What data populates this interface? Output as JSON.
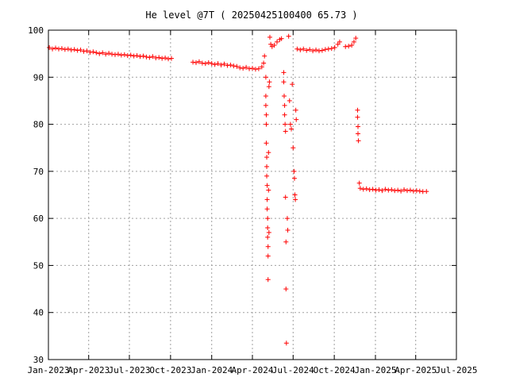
{
  "chart_data": {
    "type": "scatter",
    "title": "He level @7T ( 20250425100400 65.73 )",
    "xlabel": "",
    "ylabel": "",
    "ylim": [
      30,
      100
    ],
    "xlim": [
      "2023-01-01",
      "2025-07-01"
    ],
    "yticks": [
      30,
      40,
      50,
      60,
      70,
      80,
      90,
      100
    ],
    "xticks": [
      {
        "date": "2023-01-01",
        "label": "Jan-2023"
      },
      {
        "date": "2023-04-01",
        "label": "Apr-2023"
      },
      {
        "date": "2023-07-01",
        "label": "Jul-2023"
      },
      {
        "date": "2023-10-01",
        "label": "Oct-2023"
      },
      {
        "date": "2024-01-01",
        "label": "Jan-2024"
      },
      {
        "date": "2024-04-01",
        "label": "Apr-2024"
      },
      {
        "date": "2024-07-01",
        "label": "Jul-2024"
      },
      {
        "date": "2024-10-01",
        "label": "Oct-2024"
      },
      {
        "date": "2025-01-01",
        "label": "Jan-2025"
      },
      {
        "date": "2025-04-01",
        "label": "Apr-2025"
      },
      {
        "date": "2025-07-01",
        "label": "Jul-2025"
      }
    ],
    "grid": true,
    "marker": "plus",
    "marker_color": "#ff0000",
    "series": [
      {
        "points": [
          [
            "2023-01-03",
            96.3
          ],
          [
            "2023-01-10",
            96.0
          ],
          [
            "2023-01-17",
            96.2
          ],
          [
            "2023-01-24",
            96.0
          ],
          [
            "2023-01-31",
            96.1
          ],
          [
            "2023-02-07",
            95.9
          ],
          [
            "2023-02-14",
            96.0
          ],
          [
            "2023-02-21",
            95.8
          ],
          [
            "2023-02-28",
            95.9
          ],
          [
            "2023-03-07",
            95.7
          ],
          [
            "2023-03-14",
            95.8
          ],
          [
            "2023-03-21",
            95.5
          ],
          [
            "2023-03-28",
            95.6
          ],
          [
            "2023-04-04",
            95.3
          ],
          [
            "2023-04-11",
            95.4
          ],
          [
            "2023-04-18",
            95.2
          ],
          [
            "2023-04-25",
            95.0
          ],
          [
            "2023-05-02",
            95.2
          ],
          [
            "2023-05-09",
            94.9
          ],
          [
            "2023-05-16",
            95.1
          ],
          [
            "2023-05-23",
            94.9
          ],
          [
            "2023-05-30",
            94.8
          ],
          [
            "2023-06-06",
            94.9
          ],
          [
            "2023-06-13",
            94.7
          ],
          [
            "2023-06-20",
            94.8
          ],
          [
            "2023-06-27",
            94.6
          ],
          [
            "2023-07-04",
            94.7
          ],
          [
            "2023-07-11",
            94.5
          ],
          [
            "2023-07-18",
            94.6
          ],
          [
            "2023-07-25",
            94.4
          ],
          [
            "2023-08-01",
            94.5
          ],
          [
            "2023-08-08",
            94.3
          ],
          [
            "2023-08-15",
            94.2
          ],
          [
            "2023-08-22",
            94.4
          ],
          [
            "2023-08-29",
            94.1
          ],
          [
            "2023-09-05",
            94.2
          ],
          [
            "2023-09-12",
            94.0
          ],
          [
            "2023-09-19",
            94.1
          ],
          [
            "2023-09-26",
            93.9
          ],
          [
            "2023-10-03",
            94.0
          ],
          [
            "2023-11-20",
            93.2
          ],
          [
            "2023-11-27",
            93.1
          ],
          [
            "2023-12-04",
            93.3
          ],
          [
            "2023-12-11",
            93.0
          ],
          [
            "2023-12-18",
            92.9
          ],
          [
            "2023-12-25",
            93.1
          ],
          [
            "2024-01-01",
            92.9
          ],
          [
            "2024-01-08",
            92.7
          ],
          [
            "2024-01-15",
            92.9
          ],
          [
            "2024-01-22",
            92.6
          ],
          [
            "2024-01-29",
            92.8
          ],
          [
            "2024-02-05",
            92.5
          ],
          [
            "2024-02-12",
            92.6
          ],
          [
            "2024-02-19",
            92.4
          ],
          [
            "2024-02-26",
            92.3
          ],
          [
            "2024-03-04",
            92.0
          ],
          [
            "2024-03-11",
            91.9
          ],
          [
            "2024-03-18",
            92.1
          ],
          [
            "2024-03-25",
            91.8
          ],
          [
            "2024-04-01",
            91.9
          ],
          [
            "2024-04-08",
            91.7
          ],
          [
            "2024-04-15",
            91.8
          ],
          [
            "2024-04-22",
            92.2
          ],
          [
            "2024-04-26",
            93.0
          ],
          [
            "2024-04-28",
            94.5
          ],
          [
            "2024-05-01",
            90.0
          ],
          [
            "2024-05-01",
            86.0
          ],
          [
            "2024-05-01",
            84.0
          ],
          [
            "2024-05-02",
            82.0
          ],
          [
            "2024-05-02",
            80.0
          ],
          [
            "2024-05-02",
            76.0
          ],
          [
            "2024-05-03",
            73.0
          ],
          [
            "2024-05-03",
            71.0
          ],
          [
            "2024-05-03",
            69.0
          ],
          [
            "2024-05-04",
            67.0
          ],
          [
            "2024-05-04",
            64.0
          ],
          [
            "2024-05-04",
            62.0
          ],
          [
            "2024-05-05",
            60.0
          ],
          [
            "2024-05-05",
            58.0
          ],
          [
            "2024-05-05",
            56.0
          ],
          [
            "2024-05-06",
            54.0
          ],
          [
            "2024-05-06",
            52.0
          ],
          [
            "2024-05-06",
            47.0
          ],
          [
            "2024-05-07",
            74.0
          ],
          [
            "2024-05-07",
            66.0
          ],
          [
            "2024-05-08",
            57.0
          ],
          [
            "2024-05-08",
            88.0
          ],
          [
            "2024-05-09",
            89.0
          ],
          [
            "2024-05-10",
            98.5
          ],
          [
            "2024-05-12",
            97.0
          ],
          [
            "2024-05-15",
            96.5
          ],
          [
            "2024-05-20",
            96.8
          ],
          [
            "2024-05-26",
            97.5
          ],
          [
            "2024-06-01",
            98.0
          ],
          [
            "2024-06-05",
            98.2
          ],
          [
            "2024-06-10",
            91.0
          ],
          [
            "2024-06-10",
            89.0
          ],
          [
            "2024-06-11",
            86.0
          ],
          [
            "2024-06-12",
            84.0
          ],
          [
            "2024-06-12",
            82.0
          ],
          [
            "2024-06-13",
            80.0
          ],
          [
            "2024-06-14",
            78.5
          ],
          [
            "2024-06-14",
            64.5
          ],
          [
            "2024-06-15",
            55.0
          ],
          [
            "2024-06-15",
            45.0
          ],
          [
            "2024-06-16",
            33.5
          ],
          [
            "2024-06-18",
            60.0
          ],
          [
            "2024-06-19",
            57.5
          ],
          [
            "2024-06-21",
            98.7
          ],
          [
            "2024-06-23",
            85.0
          ],
          [
            "2024-06-25",
            80.0
          ],
          [
            "2024-06-27",
            79.0
          ],
          [
            "2024-06-29",
            88.5
          ],
          [
            "2024-07-01",
            75.0
          ],
          [
            "2024-07-03",
            70.0
          ],
          [
            "2024-07-04",
            68.5
          ],
          [
            "2024-07-05",
            65.0
          ],
          [
            "2024-07-06",
            64.0
          ],
          [
            "2024-07-07",
            83.0
          ],
          [
            "2024-07-08",
            81.0
          ],
          [
            "2024-07-10",
            96.0
          ],
          [
            "2024-07-17",
            95.8
          ],
          [
            "2024-07-24",
            96.0
          ],
          [
            "2024-07-31",
            95.7
          ],
          [
            "2024-08-07",
            95.9
          ],
          [
            "2024-08-14",
            95.6
          ],
          [
            "2024-08-21",
            95.8
          ],
          [
            "2024-08-28",
            95.6
          ],
          [
            "2024-09-04",
            95.7
          ],
          [
            "2024-09-11",
            95.9
          ],
          [
            "2024-09-18",
            96.0
          ],
          [
            "2024-09-25",
            96.1
          ],
          [
            "2024-10-02",
            96.3
          ],
          [
            "2024-10-09",
            97.0
          ],
          [
            "2024-10-13",
            97.5
          ],
          [
            "2024-10-26",
            96.5
          ],
          [
            "2024-11-02",
            96.6
          ],
          [
            "2024-11-09",
            96.8
          ],
          [
            "2024-11-14",
            97.5
          ],
          [
            "2024-11-18",
            98.3
          ],
          [
            "2024-11-22",
            83.0
          ],
          [
            "2024-11-22",
            81.5
          ],
          [
            "2024-11-23",
            79.5
          ],
          [
            "2024-11-23",
            78.0
          ],
          [
            "2024-11-24",
            76.5
          ],
          [
            "2024-11-26",
            67.5
          ],
          [
            "2024-11-28",
            66.4
          ],
          [
            "2024-12-05",
            66.2
          ],
          [
            "2024-12-12",
            66.3
          ],
          [
            "2024-12-19",
            66.1
          ],
          [
            "2024-12-26",
            66.2
          ],
          [
            "2025-01-02",
            66.0
          ],
          [
            "2025-01-09",
            66.1
          ],
          [
            "2025-01-16",
            65.9
          ],
          [
            "2025-01-23",
            66.2
          ],
          [
            "2025-01-30",
            66.0
          ],
          [
            "2025-02-06",
            66.1
          ],
          [
            "2025-02-13",
            65.9
          ],
          [
            "2025-02-20",
            66.0
          ],
          [
            "2025-02-27",
            65.8
          ],
          [
            "2025-03-06",
            66.1
          ],
          [
            "2025-03-13",
            65.9
          ],
          [
            "2025-03-20",
            66.0
          ],
          [
            "2025-03-27",
            65.8
          ],
          [
            "2025-04-03",
            65.9
          ],
          [
            "2025-04-10",
            65.8
          ],
          [
            "2025-04-17",
            65.7
          ],
          [
            "2025-04-25",
            65.73
          ]
        ]
      }
    ]
  }
}
